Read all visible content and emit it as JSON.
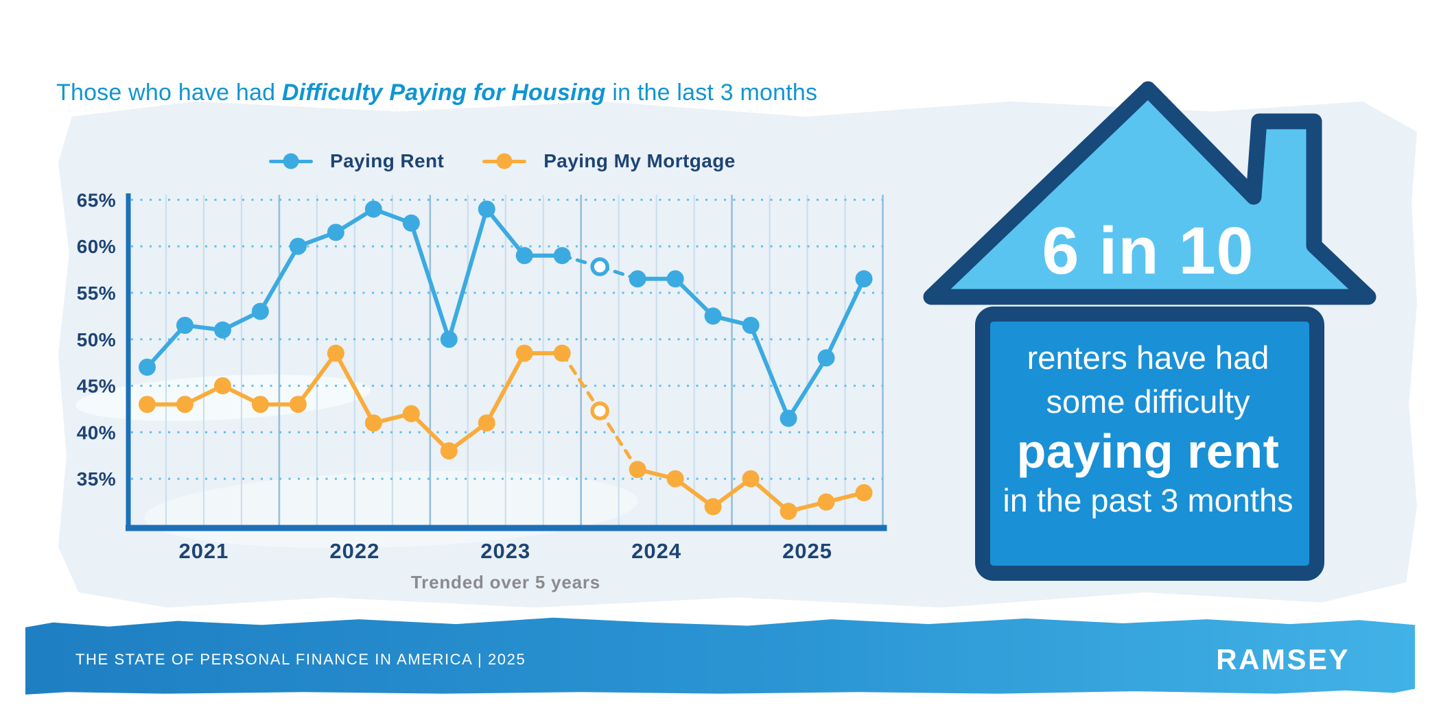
{
  "title": {
    "prefix": "Those who have had ",
    "emphasis": "Difficulty Paying for Housing",
    "suffix": " in the last 3 months"
  },
  "chart_data": {
    "type": "line",
    "categories": [
      "2021 Q1",
      "2021 Q2",
      "2021 Q3",
      "2021 Q4",
      "2022 Q1",
      "2022 Q2",
      "2022 Q3",
      "2022 Q4",
      "2023 Q1",
      "2023 Q2",
      "2023 Q3",
      "2023 Q4",
      "2024 Q1",
      "2024 Q2",
      "2024 Q3",
      "2024 Q4",
      "2025 Q1",
      "2025 Q2",
      "2025 Q3",
      "2025 Q4"
    ],
    "series": [
      {
        "name": "Paying Rent",
        "color": "#3BAAE1",
        "values": [
          47,
          51.5,
          51,
          53,
          60,
          61.5,
          64,
          62.5,
          50,
          64,
          59,
          59,
          57.8,
          56.5,
          56.5,
          52.5,
          51.5,
          41.5,
          48,
          56.5
        ],
        "interpolated_index": 12
      },
      {
        "name": "Paying My Mortgage",
        "color": "#F9AC3B",
        "values": [
          43,
          43,
          45,
          43,
          43,
          48.5,
          41,
          42,
          38,
          41,
          48.5,
          48.5,
          42.3,
          36,
          35,
          32,
          35,
          31.5,
          32.5,
          33.5
        ],
        "interpolated_index": 12
      }
    ],
    "x_axis": {
      "year_labels": [
        "2021",
        "2022",
        "2023",
        "2024",
        "2025"
      ]
    },
    "y_axis": {
      "ticks": [
        65,
        60,
        55,
        50,
        45,
        40,
        35
      ],
      "suffix": "%"
    },
    "ylim": [
      30,
      65.5
    ],
    "grid": "vertical quarter lines + dotted horizontal percent lines",
    "legend_position": "top",
    "caption": "Trended over 5 years"
  },
  "infographic": {
    "headline": "6 in 10",
    "line1": "renters have had",
    "line2": "some difficulty",
    "emphasis": "paying rent",
    "line3": "in the past 3 months"
  },
  "footer": {
    "text": "THE STATE OF PERSONAL FINANCE IN AMERICA | 2025",
    "brand": "RAMSEY"
  },
  "colors": {
    "title_blue": "#1095D2",
    "navy_text": "#1E4473",
    "rent_line": "#3BAAE1",
    "mortgage_line": "#F9AC3B",
    "axis_spine": "#1C70B8",
    "dotted_grid": "#5FC1EC",
    "grid_line": "#C9DDEC",
    "grid_line_year": "#96BFDC",
    "wash_bg": "#EAF1F7",
    "roof_fill": "#5AC4F1",
    "house_outline": "#17497B",
    "house_body": "#1A90D6",
    "footer_left": "#1E7FC2",
    "footer_right": "#41B2E6",
    "caption_gray": "#8A8B8E"
  }
}
